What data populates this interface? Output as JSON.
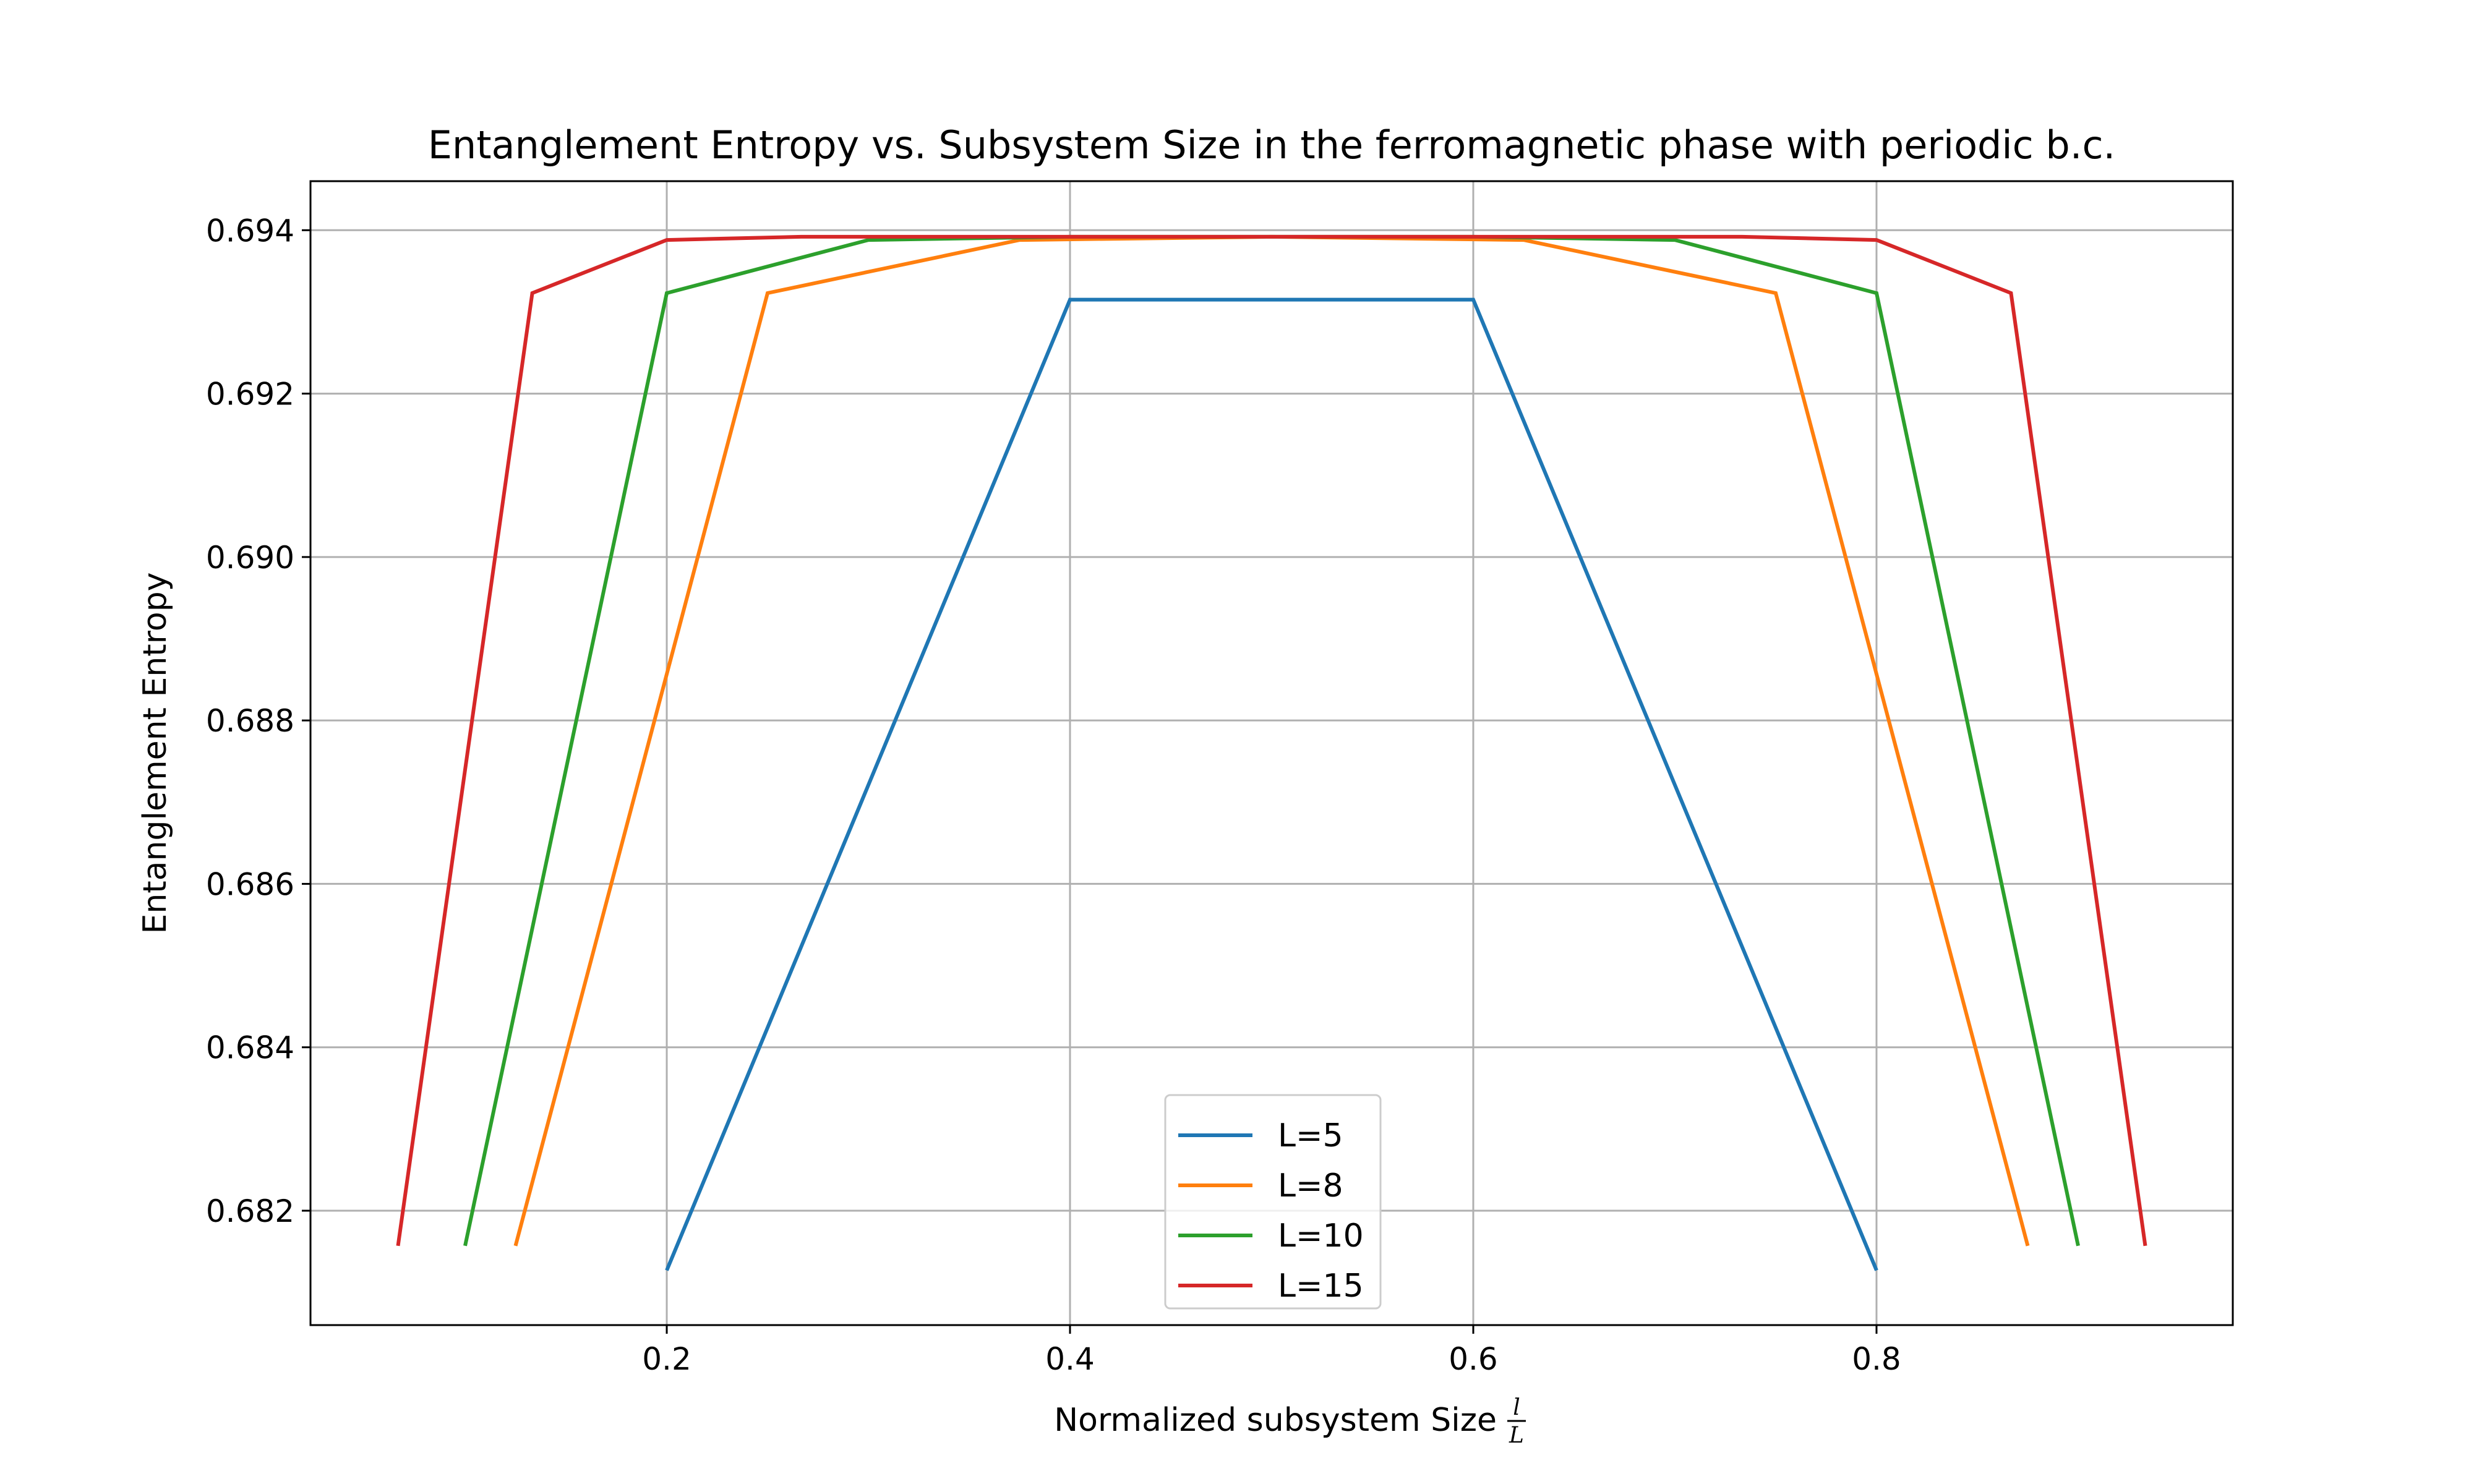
{
  "chart_data": {
    "type": "line",
    "title": "Entanglement Entropy vs. Subsystem Size in the ferromagnetic phase with periodic b.c.",
    "xlabel": "Normalized subsystem Size",
    "xlabel_fraction": {
      "numerator": "l",
      "denominator": "L"
    },
    "ylabel": "Entanglement Entropy",
    "xlim": [
      0.0233,
      0.9767
    ],
    "ylim": [
      0.6806,
      0.6946
    ],
    "xticks": [
      0.2,
      0.4,
      0.6,
      0.8
    ],
    "xtick_labels": [
      "0.2",
      "0.4",
      "0.6",
      "0.8"
    ],
    "yticks": [
      0.682,
      0.684,
      0.686,
      0.688,
      0.69,
      0.692,
      0.694
    ],
    "ytick_labels": [
      "0.682",
      "0.684",
      "0.686",
      "0.688",
      "0.690",
      "0.692",
      "0.694"
    ],
    "grid": true,
    "legend_position": "lower-center",
    "series": [
      {
        "name": "L=5",
        "color": "#1f77b4",
        "x": [
          0.2,
          0.4,
          0.6,
          0.8
        ],
        "y": [
          0.68127,
          0.69315,
          0.69315,
          0.68127
        ]
      },
      {
        "name": "L=8",
        "color": "#ff7f0e",
        "x": [
          0.125,
          0.25,
          0.375,
          0.5,
          0.625,
          0.75,
          0.875
        ],
        "y": [
          0.68157,
          0.69323,
          0.69388,
          0.69392,
          0.69388,
          0.69323,
          0.68157
        ]
      },
      {
        "name": "L=10",
        "color": "#2ca02c",
        "x": [
          0.1,
          0.2,
          0.3,
          0.4,
          0.5,
          0.6,
          0.7,
          0.8,
          0.9
        ],
        "y": [
          0.68157,
          0.69323,
          0.69388,
          0.69392,
          0.69392,
          0.69392,
          0.69388,
          0.69323,
          0.68157
        ]
      },
      {
        "name": "L=15",
        "color": "#d62728",
        "x": [
          0.0667,
          0.1333,
          0.2,
          0.2667,
          0.3333,
          0.4,
          0.4667,
          0.5333,
          0.6,
          0.6667,
          0.7333,
          0.8,
          0.8667,
          0.9333
        ],
        "y": [
          0.68157,
          0.69323,
          0.69388,
          0.69392,
          0.69392,
          0.69392,
          0.69392,
          0.69392,
          0.69392,
          0.69392,
          0.69392,
          0.69388,
          0.69323,
          0.68157
        ]
      }
    ]
  }
}
